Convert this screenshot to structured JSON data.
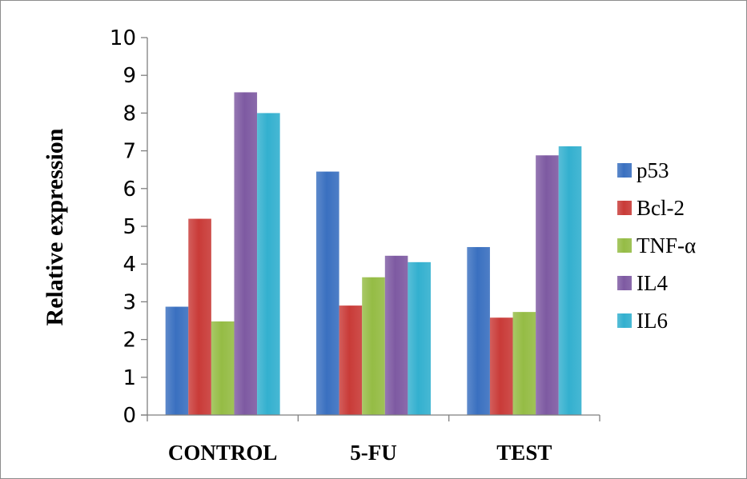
{
  "chart_data": {
    "type": "bar",
    "title": "",
    "xlabel": "",
    "ylabel": "Relative expression",
    "ylim": [
      0,
      10
    ],
    "yticks": [
      0,
      1,
      2,
      3,
      4,
      5,
      6,
      7,
      8,
      9,
      10
    ],
    "categories": [
      "CONTROL",
      "5-FU",
      "TEST"
    ],
    "grid": false,
    "legend_position": "right",
    "series": [
      {
        "name": "p53",
        "color": "#3a70c0",
        "values": [
          2.87,
          6.45,
          4.45
        ]
      },
      {
        "name": "Bcl-2",
        "color": "#c93b38",
        "values": [
          5.2,
          2.9,
          2.58
        ]
      },
      {
        "name": "TNF-α",
        "color": "#95bc45",
        "values": [
          2.48,
          3.65,
          2.73
        ]
      },
      {
        "name": "IL4",
        "color": "#7e5aa2",
        "values": [
          8.55,
          4.22,
          6.88
        ]
      },
      {
        "name": "IL6",
        "color": "#33b0cf",
        "values": [
          8.0,
          4.05,
          7.12
        ]
      }
    ]
  }
}
